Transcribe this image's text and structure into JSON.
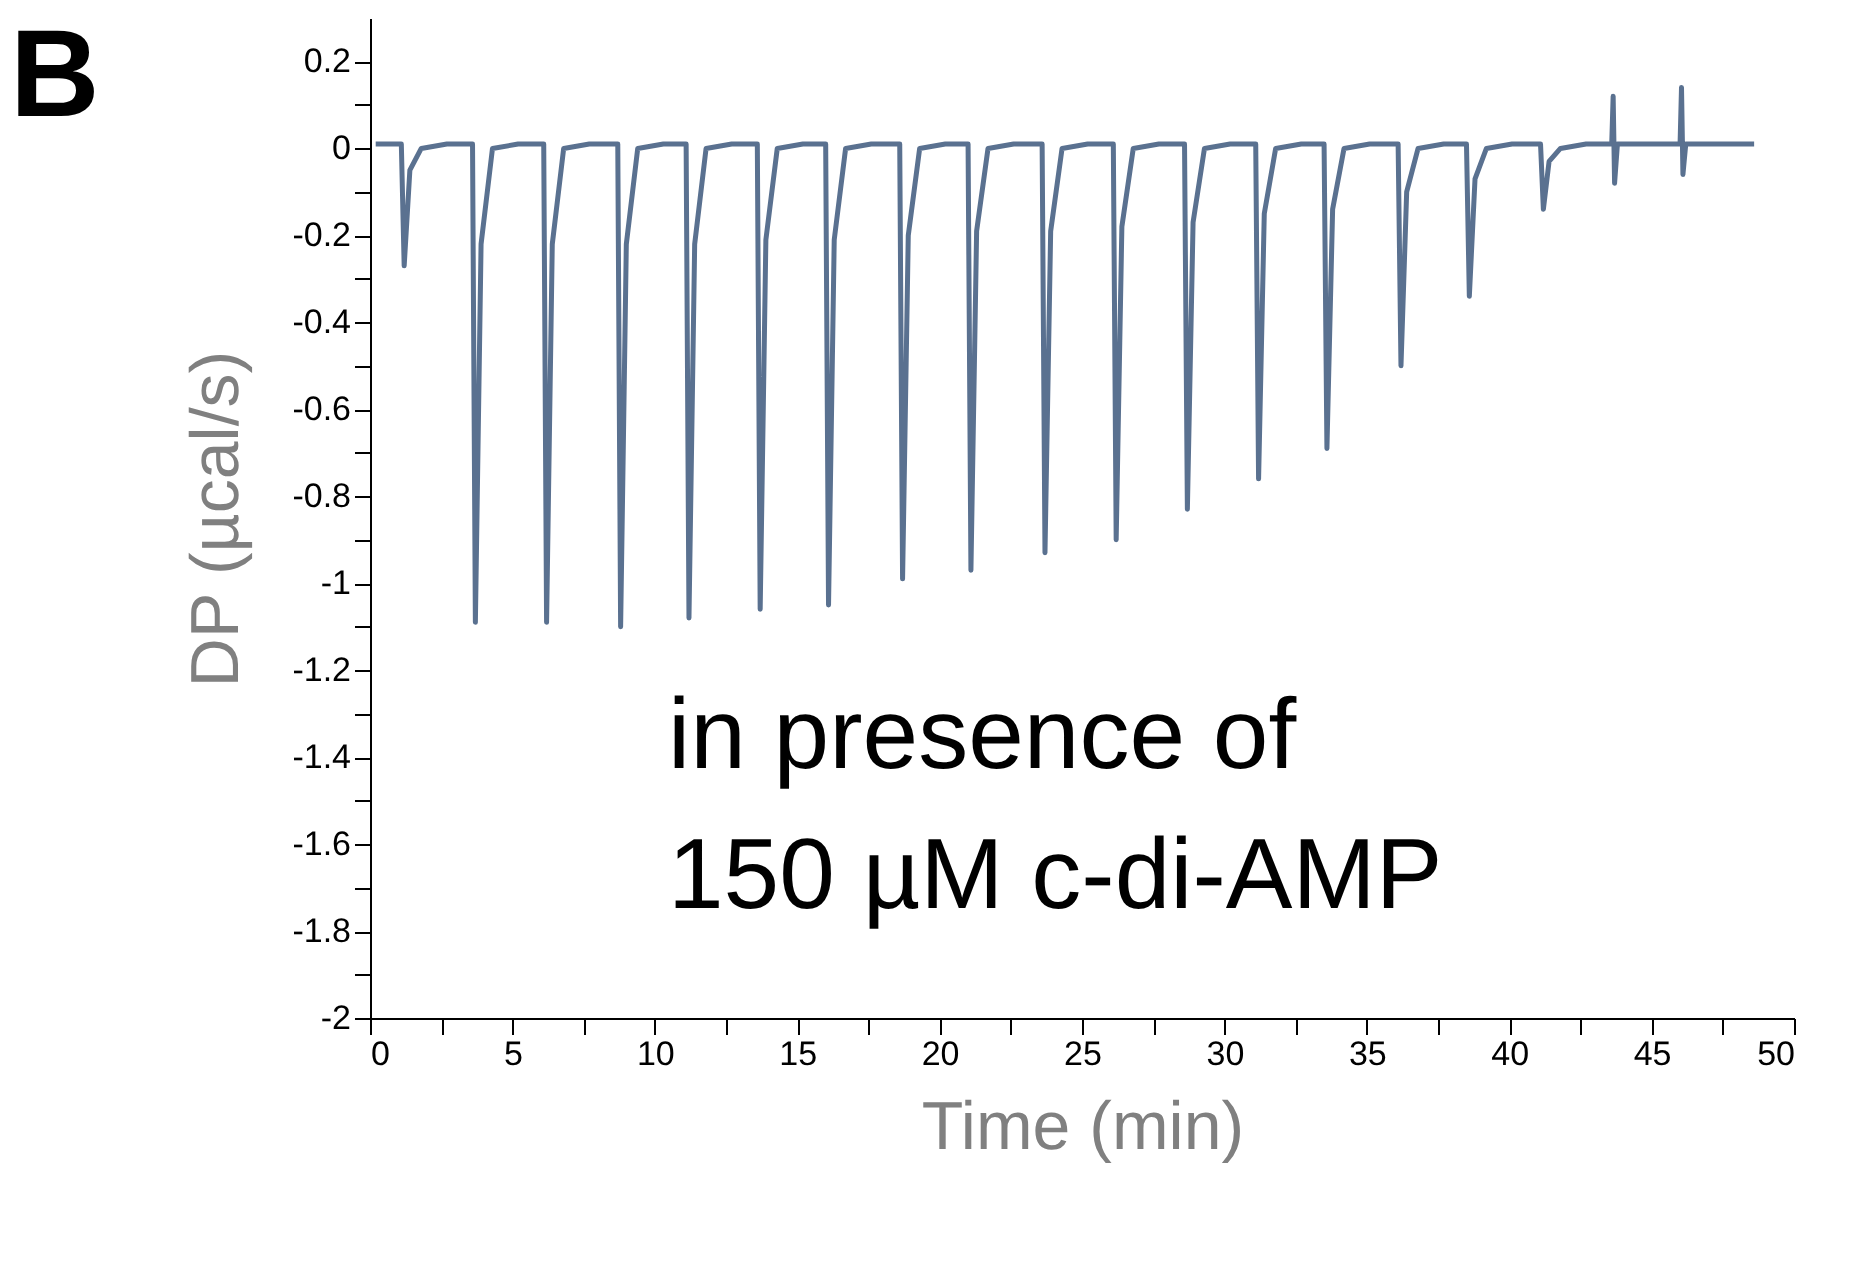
{
  "chart_data": {
    "type": "line",
    "xlabel": "Time (min)",
    "ylabel": "DP (µcal/s)",
    "annotations": [
      "B",
      "in presence of\n150 µM c-di-AMP"
    ],
    "xlim": [
      0,
      50
    ],
    "xticks": [
      0,
      {
        "value": 2.5,
        "label": null
      },
      5,
      {
        "value": 7.5,
        "label": null
      },
      10,
      {
        "value": 12.5,
        "label": null
      },
      15,
      {
        "value": 17.5,
        "label": null
      },
      20,
      {
        "value": 22.5,
        "label": null
      },
      25,
      {
        "value": 27.5,
        "label": null
      },
      30,
      {
        "value": 32.5,
        "label": null
      },
      35,
      {
        "value": 37.5,
        "label": null
      },
      40,
      {
        "value": 42.5,
        "label": null
      },
      45,
      {
        "value": 47.5,
        "label": null
      },
      50
    ],
    "ylim": [
      -2,
      0.3
    ],
    "yticks": [
      -2,
      {
        "value": -1.9,
        "label": null
      },
      -1.8,
      {
        "value": -1.7,
        "label": null
      },
      -1.6,
      {
        "value": -1.5,
        "label": null
      },
      -1.4,
      {
        "value": -1.3,
        "label": null
      },
      -1.2,
      {
        "value": -1.1,
        "label": null
      },
      -1,
      {
        "value": -0.9,
        "label": null
      },
      -0.8,
      {
        "value": -0.7,
        "label": null
      },
      -0.6,
      {
        "value": -0.5,
        "label": null
      },
      -0.4,
      {
        "value": -0.3,
        "label": null
      },
      -0.2,
      {
        "value": -0.1,
        "label": null
      },
      0,
      {
        "value": 0.1,
        "label": null
      },
      0.2
    ],
    "grid": false,
    "marker": "none",
    "line_style": "solid",
    "series": [
      {
        "color": "#5a7190",
        "x": [
          0.2,
          1.1,
          1.2,
          1.4,
          1.8,
          2.7,
          3.6,
          3.7,
          3.9,
          4.3,
          5.2,
          6.1,
          6.2,
          6.4,
          6.8,
          7.7,
          8.7,
          8.8,
          9.0,
          9.4,
          10.3,
          11.1,
          11.2,
          11.4,
          11.8,
          12.7,
          13.6,
          13.7,
          13.9,
          14.3,
          15.2,
          16.0,
          16.1,
          16.3,
          16.7,
          17.6,
          18.6,
          18.7,
          18.9,
          19.3,
          20.2,
          21.0,
          21.1,
          21.3,
          21.7,
          22.6,
          23.6,
          23.7,
          23.9,
          24.3,
          25.2,
          26.1,
          26.2,
          26.4,
          26.8,
          27.7,
          28.6,
          28.7,
          28.9,
          29.3,
          30.2,
          31.1,
          31.2,
          31.4,
          31.8,
          32.7,
          33.5,
          33.6,
          33.8,
          34.2,
          35.1,
          36.1,
          36.2,
          36.4,
          36.8,
          37.7,
          38.5,
          38.6,
          38.8,
          39.2,
          40.1,
          41.1,
          41.2,
          41.4,
          41.8,
          42.7,
          43.6,
          43.65,
          43.7,
          43.8,
          45.0,
          46.0,
          46.05,
          46.1,
          46.2,
          48.6
        ],
        "values": [
          0.01,
          0.01,
          -0.27,
          -0.05,
          0,
          0.01,
          0.01,
          -1.09,
          -0.22,
          0,
          0.01,
          0.01,
          -1.09,
          -0.22,
          0,
          0.01,
          0.01,
          -1.1,
          -0.22,
          0,
          0.01,
          0.01,
          -1.08,
          -0.22,
          0,
          0.01,
          0.01,
          -1.06,
          -0.21,
          0,
          0.01,
          0.01,
          -1.05,
          -0.21,
          0,
          0.01,
          0.01,
          -0.99,
          -0.2,
          0,
          0.01,
          0.01,
          -0.97,
          -0.19,
          0,
          0.01,
          0.01,
          -0.93,
          -0.19,
          0,
          0.01,
          0.01,
          -0.9,
          -0.18,
          0,
          0.01,
          0.01,
          -0.83,
          -0.17,
          0,
          0.01,
          0.01,
          -0.76,
          -0.15,
          0,
          0.01,
          0.01,
          -0.69,
          -0.14,
          0,
          0.01,
          0.01,
          -0.5,
          -0.1,
          0,
          0.01,
          0.01,
          -0.34,
          -0.07,
          0,
          0.01,
          0.01,
          -0.14,
          -0.03,
          0,
          0.01,
          0.01,
          0.12,
          -0.08,
          0.01,
          0.01,
          0.01,
          0.14,
          -0.06,
          0.01,
          0.01
        ]
      }
    ]
  }
}
